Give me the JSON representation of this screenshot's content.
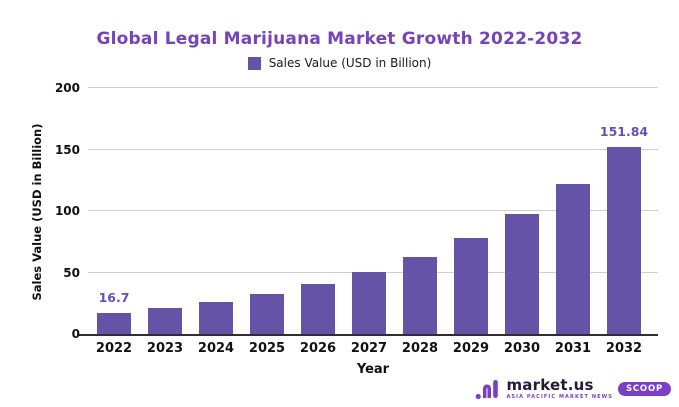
{
  "title": {
    "text": "Global Legal Marijuana Market Growth 2022-2032",
    "color": "#7743b8"
  },
  "legend": {
    "label": "Sales Value (USD in Billion)",
    "swatch_color": "#6553a8"
  },
  "chart_data": {
    "type": "bar",
    "title": "Global Legal Marijuana Market Growth 2022-2032",
    "categories": [
      "2022",
      "2023",
      "2024",
      "2025",
      "2026",
      "2027",
      "2028",
      "2029",
      "2030",
      "2031",
      "2032"
    ],
    "values": [
      16.7,
      20.8,
      26.0,
      32.4,
      40.4,
      50.4,
      62.8,
      78.3,
      97.6,
      121.8,
      151.84
    ],
    "data_labels": {
      "0": "16.7",
      "10": "151.84"
    },
    "xlabel": "Year",
    "ylabel": "Sales Value (USD in Billion)",
    "ylim": [
      0,
      200
    ],
    "yticks": [
      0,
      50,
      100,
      150,
      200
    ],
    "grid": true,
    "legend_position": "top-center",
    "bar_color": "#6553a8",
    "data_label_color": "#6750b5"
  },
  "footer": {
    "brand": "market.us",
    "tagline": "ASIA PACIFIC MARKET NEWS",
    "badge": "SCOOP",
    "brand_color": "#231b3a",
    "accent_color": "#7b3fc4"
  }
}
